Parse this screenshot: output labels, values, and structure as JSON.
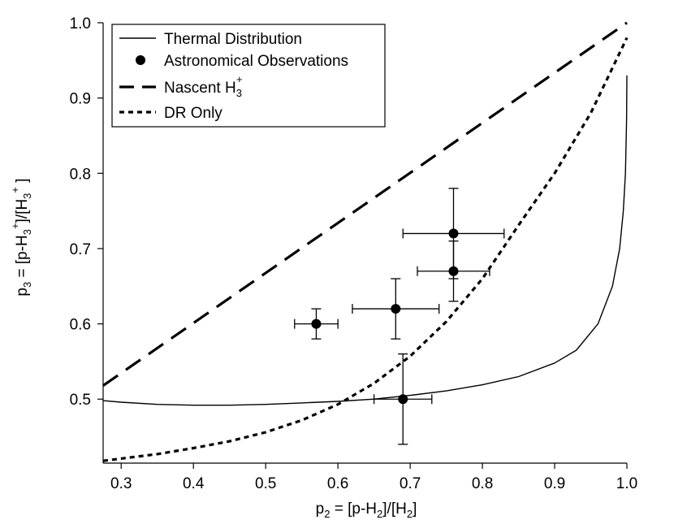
{
  "chart_data": {
    "type": "line",
    "title": "",
    "xlabel": {
      "main": "p",
      "sub": "2",
      "rest": " = [p-H",
      "sub2": "2",
      "rest2": "]/[H",
      "sub3": "2",
      "rest3": "]"
    },
    "ylabel": {
      "main": "p",
      "sub": "3",
      "rest": " = [p-H",
      "sub2": "3",
      "sup2": "+",
      "rest2": "]/[H",
      "sub3": "3",
      "sup3": "+",
      "rest3": " ]"
    },
    "xlim": [
      0.275,
      1.0
    ],
    "ylim": [
      0.415,
      1.0
    ],
    "xticks": [
      "0.3",
      "0.4",
      "0.5",
      "0.6",
      "0.7",
      "0.8",
      "0.9",
      "1.0"
    ],
    "xtick_values": [
      0.3,
      0.4,
      0.5,
      0.6,
      0.7,
      0.8,
      0.9,
      1.0
    ],
    "yticks": [
      "0.5",
      "0.6",
      "0.7",
      "0.8",
      "0.9",
      "1.0"
    ],
    "ytick_values": [
      0.5,
      0.6,
      0.7,
      0.8,
      0.9,
      1.0
    ],
    "legend_position": "top-left",
    "legend": {
      "thermal": "Thermal Distribution",
      "observations": "Astronomical Observations",
      "nascent": "Nascent H",
      "nascent_sub": "3",
      "nascent_sup": "+",
      "dr": "DR Only"
    },
    "series": [
      {
        "name": "Thermal Distribution",
        "style": "solid",
        "x": [
          0.275,
          0.3,
          0.35,
          0.4,
          0.45,
          0.5,
          0.55,
          0.6,
          0.65,
          0.7,
          0.75,
          0.8,
          0.85,
          0.9,
          0.93,
          0.96,
          0.98,
          0.99,
          0.995,
          0.998,
          0.9995,
          1.0
        ],
        "y": [
          0.498,
          0.496,
          0.493,
          0.492,
          0.492,
          0.493,
          0.495,
          0.497,
          0.5,
          0.505,
          0.511,
          0.519,
          0.53,
          0.548,
          0.565,
          0.6,
          0.65,
          0.7,
          0.75,
          0.8,
          0.87,
          0.93
        ]
      },
      {
        "name": "Nascent H3+",
        "style": "long-dash",
        "x": [
          0.275,
          1.0
        ],
        "y": [
          0.518,
          1.0
        ]
      },
      {
        "name": "DR Only",
        "style": "short-dash",
        "x": [
          0.275,
          0.3,
          0.35,
          0.4,
          0.45,
          0.5,
          0.55,
          0.6,
          0.65,
          0.7,
          0.75,
          0.8,
          0.85,
          0.9,
          0.95,
          1.0
        ],
        "y": [
          0.418,
          0.421,
          0.427,
          0.435,
          0.444,
          0.456,
          0.472,
          0.493,
          0.521,
          0.557,
          0.603,
          0.66,
          0.731,
          0.8,
          0.88,
          0.98
        ]
      }
    ],
    "observations": [
      {
        "x": 0.57,
        "y": 0.6,
        "xerr": 0.03,
        "yerr": 0.02
      },
      {
        "x": 0.68,
        "y": 0.62,
        "xerr": 0.06,
        "yerr": 0.04
      },
      {
        "x": 0.69,
        "y": 0.5,
        "xerr": 0.04,
        "yerr": 0.06
      },
      {
        "x": 0.76,
        "y": 0.67,
        "xerr": 0.05,
        "yerr": 0.04
      },
      {
        "x": 0.76,
        "y": 0.72,
        "xerr": 0.07,
        "yerr": 0.06
      }
    ]
  }
}
